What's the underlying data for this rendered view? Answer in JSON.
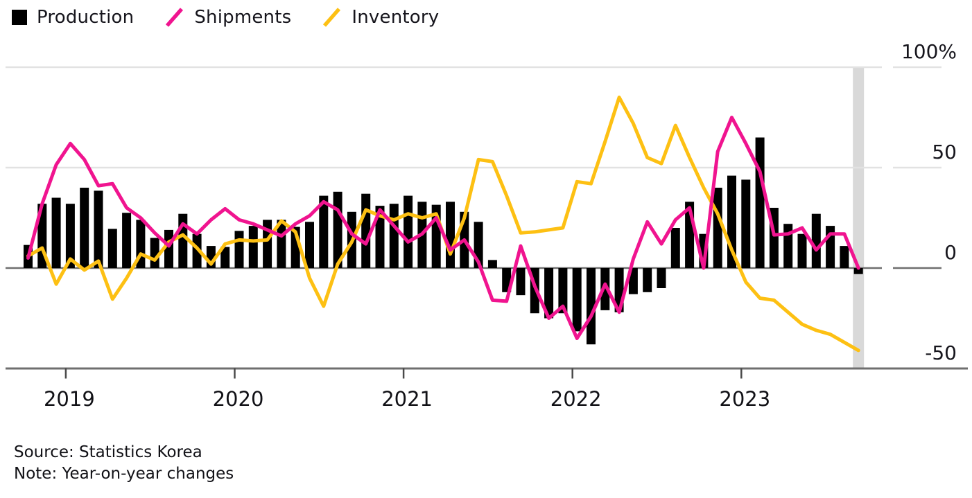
{
  "legend": {
    "items": [
      {
        "label": "Production",
        "color": "#000000",
        "marker": "square"
      },
      {
        "label": "Shipments",
        "color": "#f0148f",
        "marker": "slash"
      },
      {
        "label": "Inventory",
        "color": "#fdc013",
        "marker": "slash"
      }
    ]
  },
  "footer": {
    "source": "Source: Statistics Korea",
    "note": "Note: Year-on-year changes"
  },
  "chart_data": {
    "type": "bar",
    "subtype": "bar-line combo, monthly year-on-year % changes",
    "unit": "%",
    "ylim": [
      -50,
      100
    ],
    "grid": "horizontal",
    "legend_position": "top-left",
    "x": [
      "2018-10",
      "2018-11",
      "2018-12",
      "2019-01",
      "2019-02",
      "2019-03",
      "2019-04",
      "2019-05",
      "2019-06",
      "2019-07",
      "2019-08",
      "2019-09",
      "2019-10",
      "2019-11",
      "2019-12",
      "2020-01",
      "2020-02",
      "2020-03",
      "2020-04",
      "2020-05",
      "2020-06",
      "2020-07",
      "2020-08",
      "2020-09",
      "2020-10",
      "2020-11",
      "2020-12",
      "2021-01",
      "2021-02",
      "2021-03",
      "2021-04",
      "2021-05",
      "2021-06",
      "2021-07",
      "2021-08",
      "2021-09",
      "2021-10",
      "2021-11",
      "2021-12",
      "2022-01",
      "2022-02",
      "2022-03",
      "2022-04",
      "2022-05",
      "2022-06",
      "2022-07",
      "2022-08",
      "2022-09",
      "2022-10",
      "2022-11",
      "2022-12",
      "2023-01",
      "2023-02",
      "2023-03",
      "2023-04",
      "2023-05",
      "2023-06",
      "2023-07",
      "2023-08",
      "2023-09"
    ],
    "series": [
      {
        "name": "Production",
        "type": "bar",
        "color": "#000000",
        "values": [
          11.5,
          32,
          35,
          32,
          40,
          38.5,
          19.5,
          27.5,
          24,
          15,
          19,
          27,
          17,
          11,
          10.5,
          18.5,
          21,
          24,
          24,
          20.5,
          23,
          36,
          38,
          28,
          37,
          31,
          32,
          36,
          33,
          31.5,
          33,
          28,
          23,
          4,
          -12,
          -13.5,
          -22.5,
          -25,
          -22.5,
          -31.5,
          -38,
          -21,
          -22,
          -13,
          -12,
          -10,
          20,
          33,
          17,
          40,
          46,
          44,
          65,
          30,
          22,
          17,
          27,
          21,
          11,
          -3
        ]
      },
      {
        "name": "Shipments",
        "type": "line",
        "color": "#f0148f",
        "values": [
          5,
          32,
          51.5,
          62,
          54,
          41,
          42,
          30,
          25,
          17.5,
          11,
          22,
          17,
          24,
          29.5,
          24,
          22,
          19,
          16,
          22,
          26,
          33,
          29,
          17,
          12,
          29,
          21,
          13,
          17,
          25,
          9,
          14,
          3,
          -16,
          -16.5,
          11,
          -9,
          -25,
          -19,
          -35,
          -24,
          -8,
          -22,
          4.5,
          23,
          12,
          24,
          30,
          0,
          58,
          75,
          62,
          48,
          16.5,
          17,
          20,
          9,
          17,
          17,
          0
        ]
      },
      {
        "name": "Inventory",
        "type": "line",
        "color": "#fdc013",
        "values": [
          6,
          10,
          -8,
          4.5,
          -1,
          3.5,
          -15.5,
          -5,
          7,
          4,
          13,
          16.5,
          10,
          2,
          12,
          14,
          13.5,
          14,
          23.5,
          18,
          -5,
          -19,
          2,
          13,
          29,
          26,
          24,
          27,
          25,
          27,
          7,
          25,
          54,
          53,
          36,
          17.5,
          18,
          19,
          20,
          43,
          42,
          63,
          85,
          72,
          55,
          52,
          71,
          55,
          40,
          27,
          9,
          -7,
          -15,
          -16,
          -22,
          -28,
          -31,
          -33,
          -37,
          -41
        ]
      }
    ],
    "y_ticks": [
      {
        "label": "100%",
        "value": 100
      },
      {
        "label": "50",
        "value": 50
      },
      {
        "label": "0",
        "value": 0
      },
      {
        "label": "-50",
        "value": -50
      }
    ],
    "x_ticks": [
      {
        "label": "2019",
        "month_index": 3
      },
      {
        "label": "2020",
        "month_index": 15
      },
      {
        "label": "2021",
        "month_index": 27
      },
      {
        "label": "2022",
        "month_index": 39
      },
      {
        "label": "2023",
        "month_index": 51
      }
    ],
    "highlight_band": {
      "month_index": 59,
      "color": "#d9d9d9"
    }
  }
}
